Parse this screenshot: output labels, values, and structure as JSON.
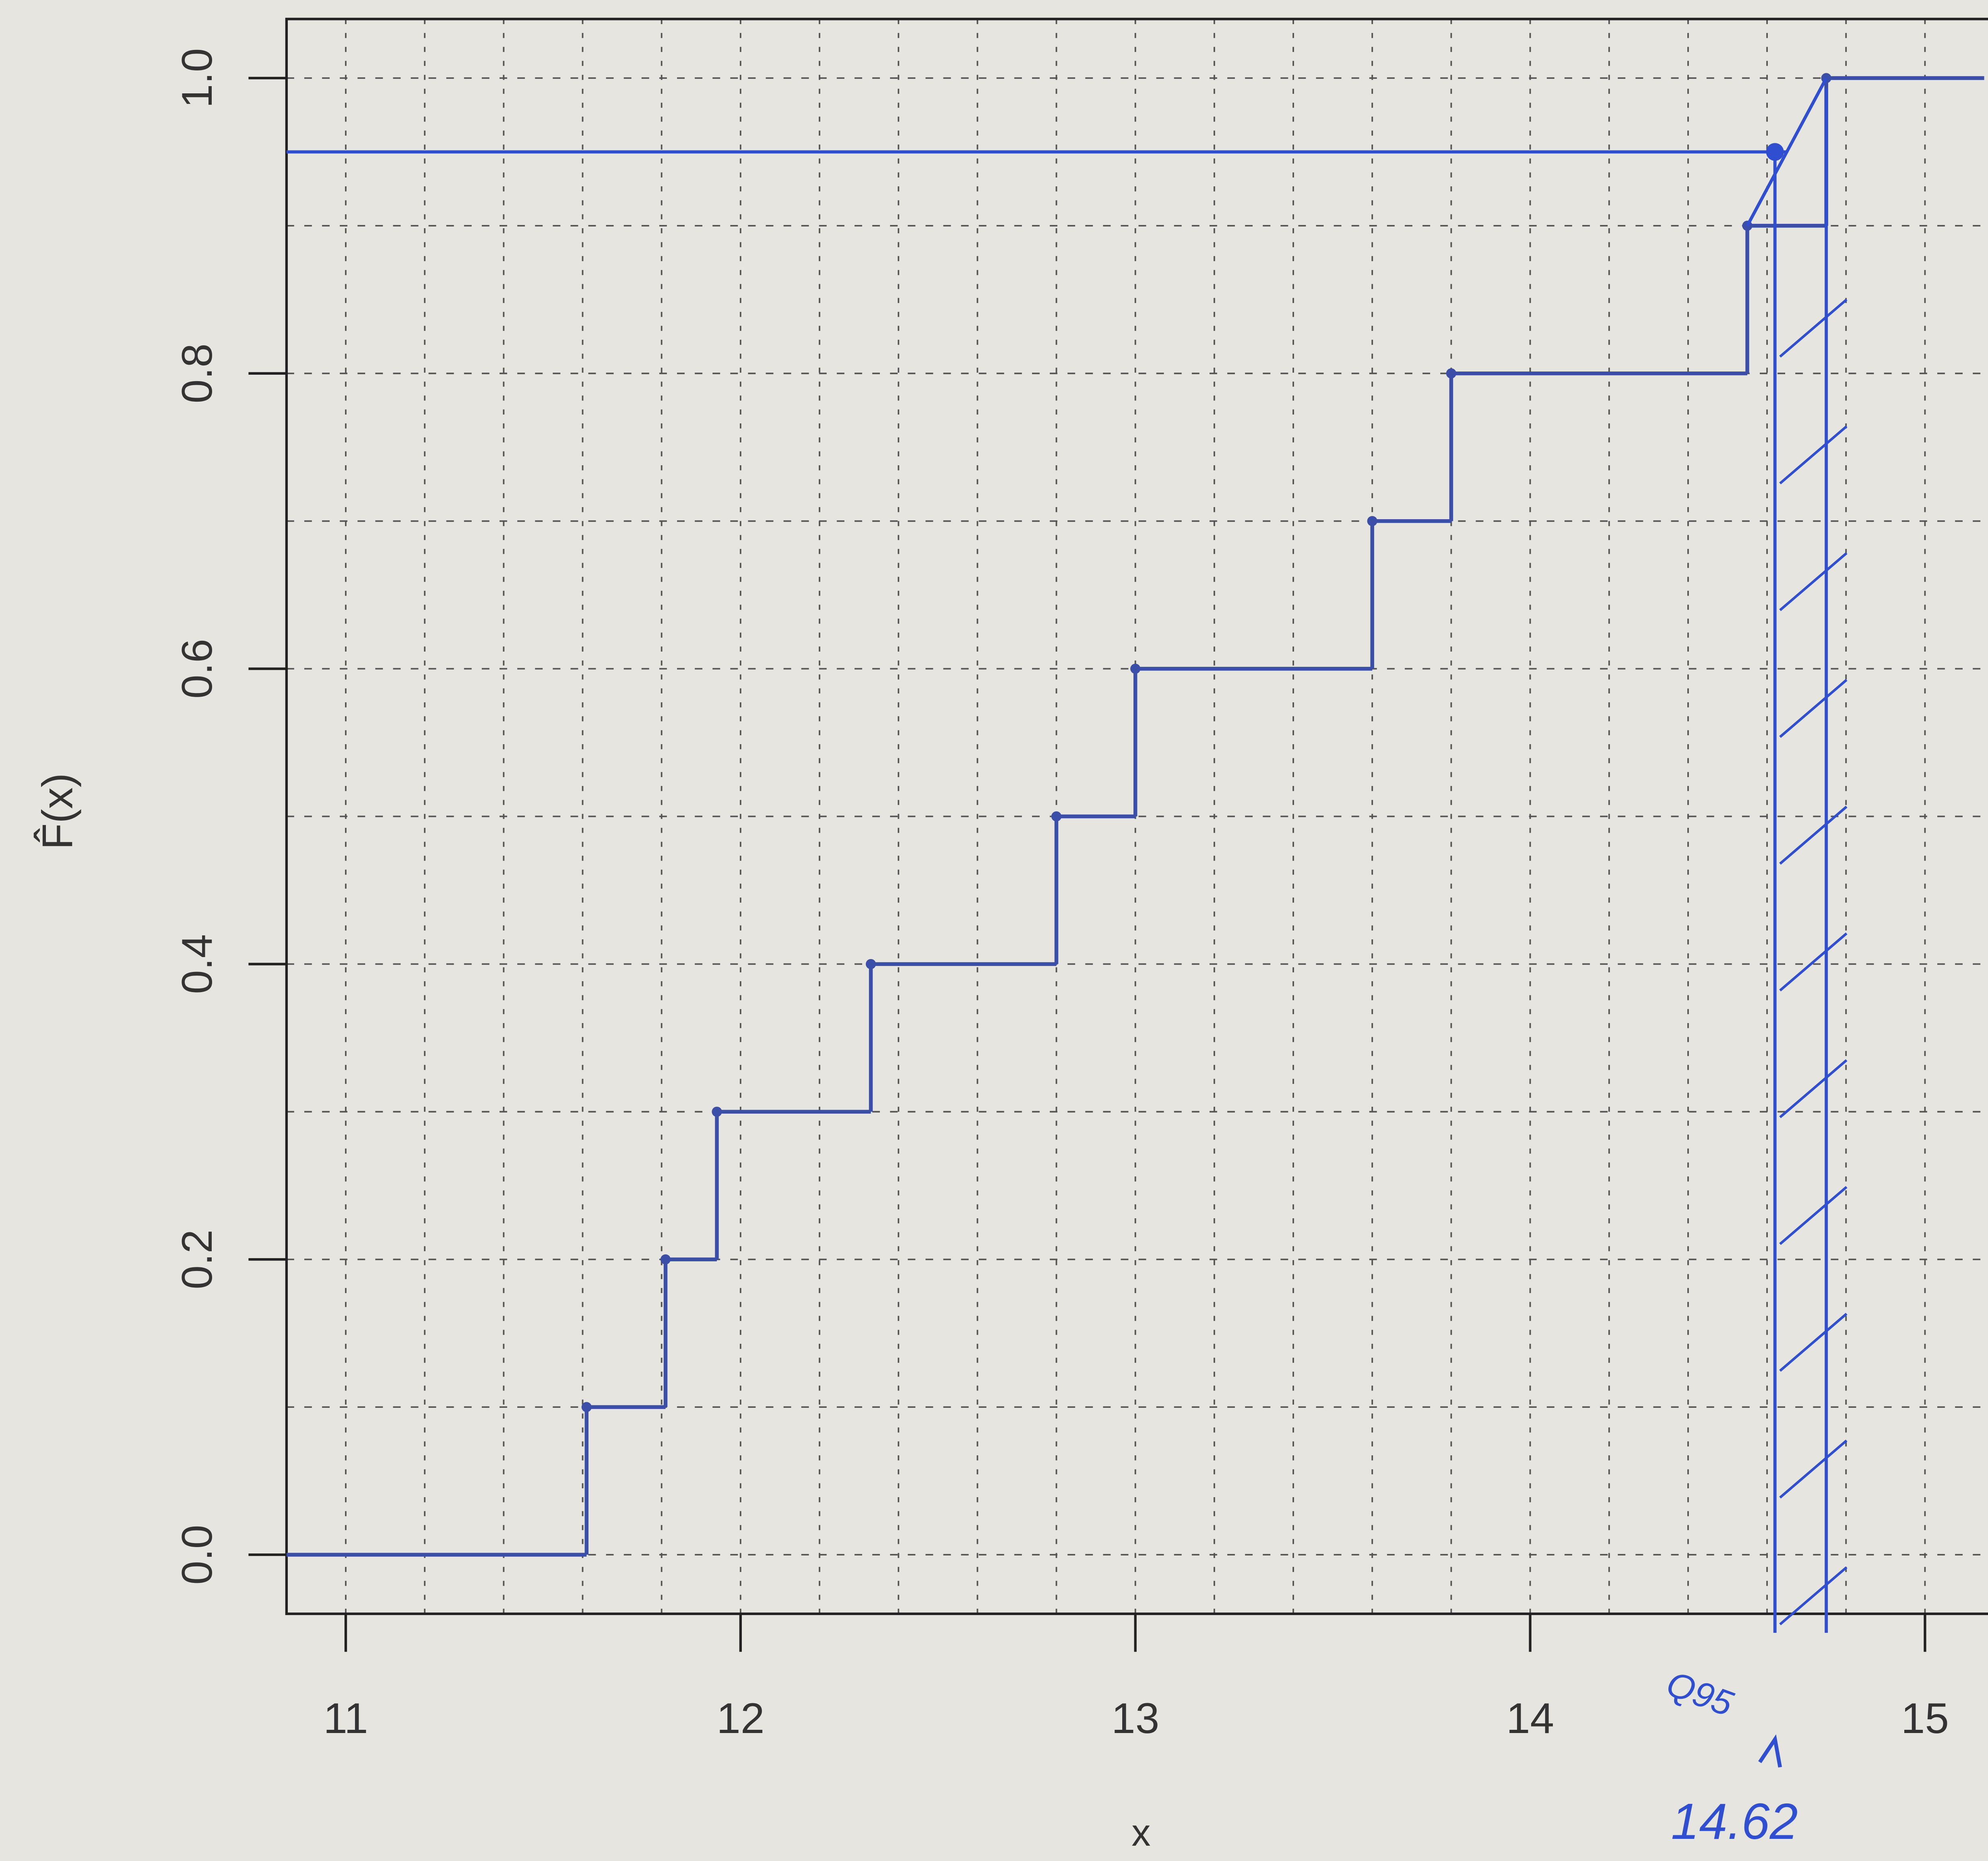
{
  "chart_data": {
    "type": "step",
    "x_label": "x",
    "y_label": "F̂(x)",
    "x": [
      11.61,
      11.81,
      11.94,
      12.33,
      12.8,
      13.0,
      13.6,
      13.8,
      14.55,
      14.75
    ],
    "values": [
      0.1,
      0.2,
      0.3,
      0.4,
      0.5,
      0.6,
      0.7,
      0.8,
      0.9,
      1.0
    ],
    "color": "#3b4fa8",
    "xlim": [
      10.85,
      15.15
    ],
    "ylim": [
      -0.04,
      1.04
    ],
    "xticks": [
      11,
      12,
      13,
      14,
      15
    ],
    "yticks": [
      {
        "value": 0,
        "label": "0.0"
      },
      0.2,
      0.4,
      0.6,
      0.8,
      {
        "value": 1,
        "label": "1.0"
      }
    ],
    "x_minor_grid": [
      11,
      11.2,
      11.4,
      11.6,
      11.8,
      12,
      12.2,
      12.4,
      12.6,
      12.8,
      13,
      13.2,
      13.4,
      13.6,
      13.8,
      14,
      14.2,
      14.4,
      14.6,
      14.8,
      15
    ],
    "y_minor_grid": [
      0,
      0.1,
      0.2,
      0.3,
      0.4,
      0.5,
      0.6,
      0.7,
      0.8,
      0.9,
      1.0
    ],
    "grid": true,
    "annotation_color": "#2f4fd0",
    "hline": 0.95,
    "vlines": [
      14.62,
      14.75
    ],
    "annotations": [
      {
        "text": "Q95"
      },
      {
        "text": "14.62"
      }
    ]
  }
}
